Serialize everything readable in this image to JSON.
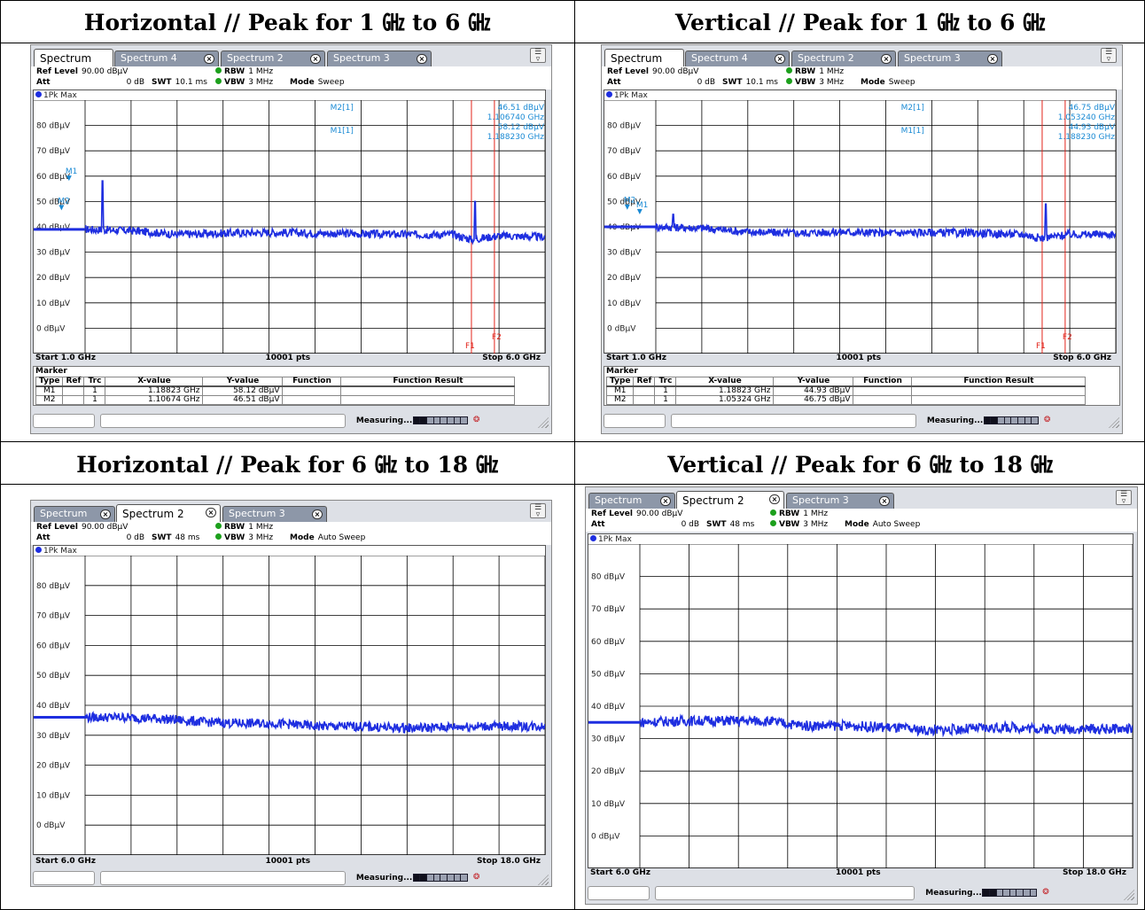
{
  "colors": {
    "trace": "#1e2ee0",
    "limit_line": "#e2231a",
    "marker": "#1a8ad4",
    "grid": "#000000",
    "tab_inactive": "#8d97a8",
    "panel_bg": "#dde0e6"
  },
  "icons": {
    "menu": "menu-toggle-icon",
    "close": "tab-close-icon",
    "resize": "resize-grip-icon",
    "logo": "rs-logo-icon"
  },
  "quadrants": [
    {
      "title": "Horizontal // Peak for 1 ㎓ to 6 ㎓",
      "tabs": [
        {
          "label": "Spectrum",
          "active": true
        },
        {
          "label": "Spectrum 4",
          "active": false
        },
        {
          "label": "Spectrum 2",
          "active": false
        },
        {
          "label": "Spectrum 3",
          "active": false
        }
      ],
      "info": {
        "ref_level_label": "Ref Level",
        "ref_level_value": "90.00 dBµV",
        "att_label": "Att",
        "att_value": "0 dB",
        "swt_label": "SWT",
        "swt_value": "10.1 ms",
        "rbw_label": "RBW",
        "rbw_value": "1 MHz",
        "vbw_label": "VBW",
        "vbw_value": "3 MHz",
        "mode_label": "Mode",
        "mode_value": "Sweep"
      },
      "trace_label": "1Pk Max",
      "y_labels": [
        "80 dBµV",
        "70 dBµV",
        "60 dBµV",
        "50 dBµV",
        "40 dBµV",
        "30 dBµV",
        "20 dBµV",
        "10 dBµV",
        "0 dBµV"
      ],
      "marker_readout": {
        "m2_name": "M2[1]",
        "m2_level": "46.51 dBµV",
        "m2_freq": "1.106740 GHz",
        "m1_name": "M1[1]",
        "m1_level": "58.12 dBµV",
        "m1_freq": "1.188230 GHz"
      },
      "limit_lines": [
        "F1",
        "F2"
      ],
      "footer": {
        "start": "Start 1.0 GHz",
        "points": "10001 pts",
        "stop": "Stop 6.0 GHz"
      },
      "marker_table": {
        "title": "Marker",
        "headers": [
          "Type",
          "Ref",
          "Trc",
          "X-value",
          "Y-value",
          "Function",
          "Function Result"
        ],
        "rows": [
          [
            "M1",
            "",
            "1",
            "1.18823 GHz",
            "58.12 dBµV",
            "",
            ""
          ],
          [
            "M2",
            "",
            "1",
            "1.10674 GHz",
            "46.51 dBµV",
            "",
            ""
          ]
        ]
      },
      "status": "Measuring..."
    },
    {
      "title": "Vertical // Peak for 1 ㎓ to 6 ㎓",
      "tabs": [
        {
          "label": "Spectrum",
          "active": true
        },
        {
          "label": "Spectrum 4",
          "active": false
        },
        {
          "label": "Spectrum 2",
          "active": false
        },
        {
          "label": "Spectrum 3",
          "active": false
        }
      ],
      "info": {
        "ref_level_label": "Ref Level",
        "ref_level_value": "90.00 dBµV",
        "att_label": "Att",
        "att_value": "0 dB",
        "swt_label": "SWT",
        "swt_value": "10.1 ms",
        "rbw_label": "RBW",
        "rbw_value": "1 MHz",
        "vbw_label": "VBW",
        "vbw_value": "3 MHz",
        "mode_label": "Mode",
        "mode_value": "Sweep"
      },
      "trace_label": "1Pk Max",
      "y_labels": [
        "80 dBµV",
        "70 dBµV",
        "60 dBµV",
        "50 dBµV",
        "40 dBµV",
        "30 dBµV",
        "20 dBµV",
        "10 dBµV",
        "0 dBµV"
      ],
      "marker_readout": {
        "m2_name": "M2[1]",
        "m2_level": "46.75 dBµV",
        "m2_freq": "1.053240 GHz",
        "m1_name": "M1[1]",
        "m1_level": "44.93 dBµV",
        "m1_freq": "1.188230 GHz"
      },
      "limit_lines": [
        "F1",
        "F2"
      ],
      "footer": {
        "start": "Start 1.0 GHz",
        "points": "10001 pts",
        "stop": "Stop 6.0 GHz"
      },
      "marker_table": {
        "title": "Marker",
        "headers": [
          "Type",
          "Ref",
          "Trc",
          "X-value",
          "Y-value",
          "Function",
          "Function Result"
        ],
        "rows": [
          [
            "M1",
            "",
            "1",
            "1.18823 GHz",
            "44.93 dBµV",
            "",
            ""
          ],
          [
            "M2",
            "",
            "1",
            "1.05324 GHz",
            "46.75 dBµV",
            "",
            ""
          ]
        ]
      },
      "status": "Measuring..."
    },
    {
      "title": "Horizontal // Peak for 6 ㎓ to 18 ㎓",
      "tabs": [
        {
          "label": "Spectrum",
          "active": false
        },
        {
          "label": "Spectrum 2",
          "active": true
        },
        {
          "label": "Spectrum 3",
          "active": false
        }
      ],
      "info": {
        "ref_level_label": "Ref Level",
        "ref_level_value": "90.00 dBµV",
        "att_label": "Att",
        "att_value": "0 dB",
        "swt_label": "SWT",
        "swt_value": "48 ms",
        "rbw_label": "RBW",
        "rbw_value": "1 MHz",
        "vbw_label": "VBW",
        "vbw_value": "3 MHz",
        "mode_label": "Mode",
        "mode_value": "Auto Sweep"
      },
      "trace_label": "1Pk Max",
      "y_labels": [
        "80 dBµV",
        "70 dBµV",
        "60 dBµV",
        "50 dBµV",
        "40 dBµV",
        "30 dBµV",
        "20 dBµV",
        "10 dBµV",
        "0 dBµV"
      ],
      "footer": {
        "start": "Start 6.0 GHz",
        "points": "10001 pts",
        "stop": "Stop 18.0 GHz"
      },
      "status": "Measuring..."
    },
    {
      "title": "Vertical // Peak for 6 ㎓ to 18 ㎓",
      "tabs": [
        {
          "label": "Spectrum",
          "active": false
        },
        {
          "label": "Spectrum 2",
          "active": true
        },
        {
          "label": "Spectrum 3",
          "active": false
        }
      ],
      "info": {
        "ref_level_label": "Ref Level",
        "ref_level_value": "90.00 dBµV",
        "att_label": "Att",
        "att_value": "0 dB",
        "swt_label": "SWT",
        "swt_value": "48 ms",
        "rbw_label": "RBW",
        "rbw_value": "1 MHz",
        "vbw_label": "VBW",
        "vbw_value": "3 MHz",
        "mode_label": "Mode",
        "mode_value": "Auto Sweep"
      },
      "trace_label": "1Pk Max",
      "y_labels": [
        "80 dBµV",
        "70 dBµV",
        "60 dBµV",
        "50 dBµV",
        "40 dBµV",
        "30 dBµV",
        "20 dBµV",
        "10 dBµV",
        "0 dBµV"
      ],
      "footer": {
        "start": "Start 6.0 GHz",
        "points": "10001 pts",
        "stop": "Stop 18.0 GHz"
      },
      "status": "Measuring..."
    }
  ],
  "chart_data": [
    {
      "type": "line",
      "x_range_ghz": [
        1.0,
        6.0
      ],
      "ylim": [
        -10,
        90
      ],
      "noise_floor_dbuv": [
        [
          1.0,
          39
        ],
        [
          1.5,
          38.5
        ],
        [
          2.0,
          37
        ],
        [
          2.5,
          37.5
        ],
        [
          3.0,
          37.8
        ],
        [
          3.5,
          37.5
        ],
        [
          4.0,
          37.2
        ],
        [
          4.5,
          37.0
        ],
        [
          5.0,
          37.0
        ],
        [
          5.2,
          35.0
        ],
        [
          5.5,
          36.5
        ],
        [
          6.0,
          36.0
        ]
      ],
      "markers": [
        {
          "name": "M1",
          "x_ghz": 1.18823,
          "y_dbuv": 58.12
        },
        {
          "name": "M2",
          "x_ghz": 1.10674,
          "y_dbuv": 46.51
        }
      ],
      "spikes": [
        {
          "x_ghz": 5.24,
          "y_dbuv": 50
        }
      ],
      "limit_lines_ghz": [
        5.2,
        5.45
      ]
    },
    {
      "type": "line",
      "x_range_ghz": [
        1.0,
        6.0
      ],
      "ylim": [
        -10,
        90
      ],
      "noise_floor_dbuv": [
        [
          1.0,
          40
        ],
        [
          1.5,
          39.5
        ],
        [
          2.0,
          38
        ],
        [
          2.5,
          37.5
        ],
        [
          3.0,
          38.0
        ],
        [
          3.5,
          37.5
        ],
        [
          4.0,
          37.8
        ],
        [
          4.5,
          37.5
        ],
        [
          5.0,
          37.0
        ],
        [
          5.2,
          35.5
        ],
        [
          5.5,
          37.0
        ],
        [
          6.0,
          37.0
        ]
      ],
      "markers": [
        {
          "name": "M1",
          "x_ghz": 1.18823,
          "y_dbuv": 44.93
        },
        {
          "name": "M2",
          "x_ghz": 1.05324,
          "y_dbuv": 46.75
        }
      ],
      "spikes": [
        {
          "x_ghz": 5.24,
          "y_dbuv": 49
        }
      ],
      "limit_lines_ghz": [
        5.2,
        5.45
      ]
    },
    {
      "type": "line",
      "x_range_ghz": [
        6.0,
        18.0
      ],
      "ylim": [
        -10,
        90
      ],
      "noise_floor_dbuv": [
        [
          6.0,
          36
        ],
        [
          7.0,
          36
        ],
        [
          8.0,
          35.5
        ],
        [
          9.0,
          34.5
        ],
        [
          10.0,
          34
        ],
        [
          11.0,
          34
        ],
        [
          12.0,
          33
        ],
        [
          13.0,
          33
        ],
        [
          14.0,
          32.5
        ],
        [
          15.0,
          32.5
        ],
        [
          16.0,
          33
        ],
        [
          17.0,
          33
        ],
        [
          18.0,
          33
        ]
      ]
    },
    {
      "type": "line",
      "x_range_ghz": [
        6.0,
        18.0
      ],
      "ylim": [
        -10,
        90
      ],
      "noise_floor_dbuv": [
        [
          6.0,
          35
        ],
        [
          7.0,
          35.5
        ],
        [
          8.0,
          35.5
        ],
        [
          9.0,
          35.5
        ],
        [
          10.0,
          34
        ],
        [
          11.0,
          34
        ],
        [
          12.0,
          33.5
        ],
        [
          13.0,
          32.5
        ],
        [
          14.0,
          33
        ],
        [
          15.0,
          33.5
        ],
        [
          16.0,
          33
        ],
        [
          17.0,
          33
        ],
        [
          18.0,
          33
        ]
      ]
    }
  ]
}
